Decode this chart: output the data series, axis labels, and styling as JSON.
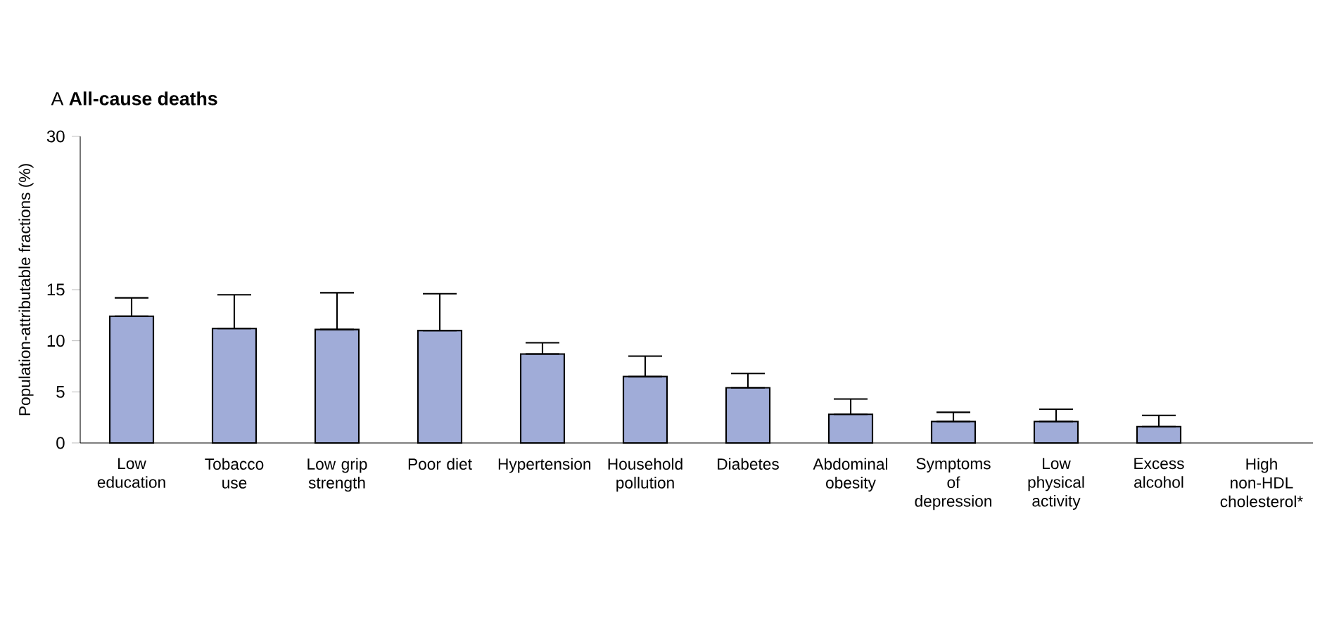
{
  "chart_data": {
    "type": "bar",
    "title": "A **All-cause deaths**",
    "ylabel": "Population-attributable fractions (%)",
    "categories": [
      "Low education",
      "Tobacco use",
      "Low grip strength",
      "Poor diet",
      "Hypertension",
      "Household pollution",
      "Diabetes",
      "Abdominal obesity",
      "Symptoms of depression",
      "Low physical activity",
      "Excess alcohol",
      "High non-HDL cholesterol*"
    ],
    "values": [
      12.4,
      11.2,
      11.1,
      11.0,
      8.7,
      6.5,
      5.4,
      2.8,
      2.1,
      2.1,
      1.6,
      null
    ],
    "errors": [
      [
        12.4,
        14.2
      ],
      [
        11.2,
        14.5
      ],
      [
        11.1,
        14.7
      ],
      [
        11.0,
        14.6
      ],
      [
        8.7,
        9.8
      ],
      [
        6.5,
        8.5
      ],
      [
        5.4,
        6.8
      ],
      [
        2.8,
        4.3
      ],
      [
        2.1,
        3.0
      ],
      [
        2.1,
        3.3
      ],
      [
        1.6,
        2.7
      ],
      null
    ],
    "color": "#a0acd8",
    "ylim": [
      0,
      30
    ],
    "yticks": [
      0,
      5,
      10,
      15,
      30
    ],
    "grid": false
  }
}
